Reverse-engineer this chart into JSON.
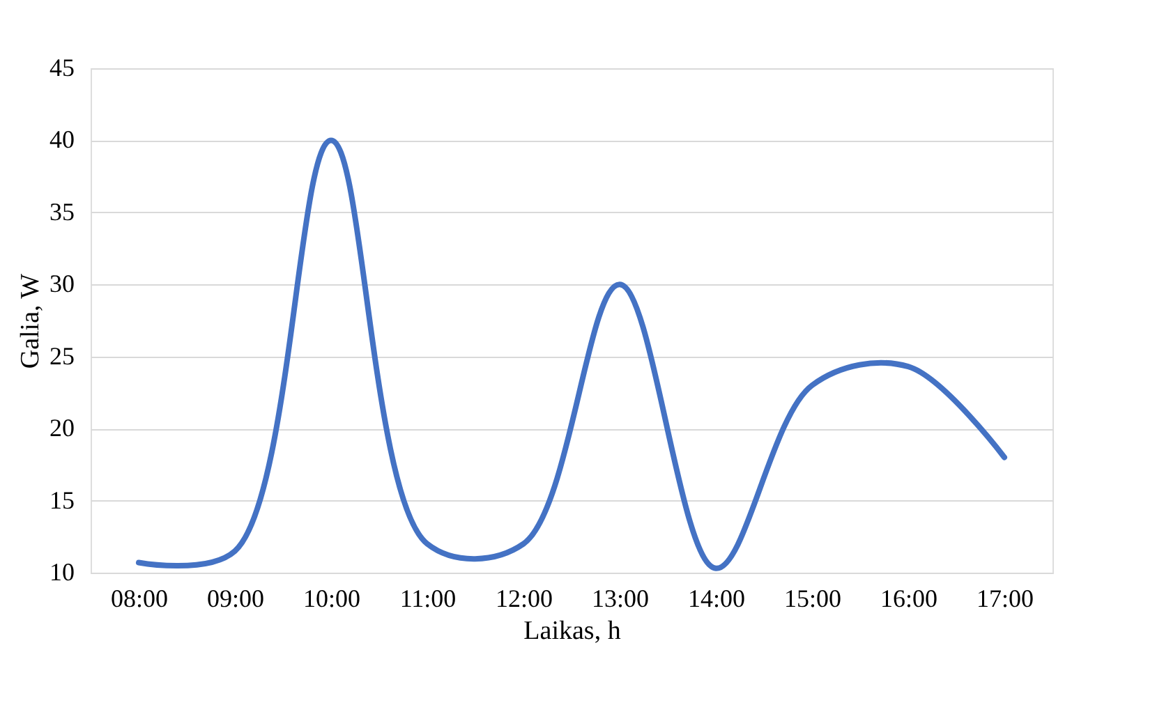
{
  "chart_data": {
    "type": "line",
    "xlabel": "Laikas, h",
    "ylabel": "Galia, W",
    "x": [
      8,
      9,
      10,
      11,
      12,
      13,
      14,
      15,
      16,
      17
    ],
    "series": [
      {
        "color": "#4472c4",
        "values": [
          10.7,
          11.5,
          40,
          12,
          12,
          30,
          10.3,
          23,
          24.3,
          18
        ]
      }
    ],
    "xlim": [
      7.5,
      17.5
    ],
    "xticks": [
      {
        "value": 8,
        "label": "08:00"
      },
      {
        "value": 9,
        "label": "09:00"
      },
      {
        "value": 10,
        "label": "10:00"
      },
      {
        "value": 11,
        "label": "11:00"
      },
      {
        "value": 12,
        "label": "12:00"
      },
      {
        "value": 13,
        "label": "13:00"
      },
      {
        "value": 14,
        "label": "14:00"
      },
      {
        "value": 15,
        "label": "15:00"
      },
      {
        "value": 16,
        "label": "16:00"
      },
      {
        "value": 17,
        "label": "17:00"
      }
    ],
    "ylim": [
      10,
      45
    ],
    "yticks": [
      10,
      15,
      20,
      25,
      30,
      35,
      40,
      45
    ],
    "grid": "y",
    "marker": "none",
    "line_style": "solid"
  }
}
